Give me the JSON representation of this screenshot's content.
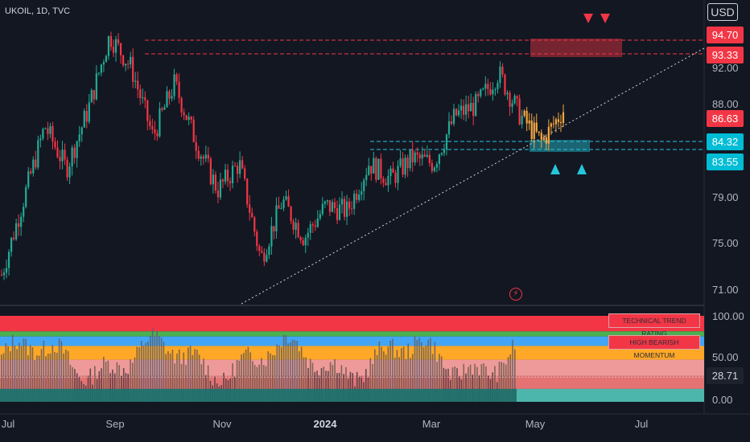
{
  "header": {
    "symbol": "UKOIL, 1D, TVC",
    "currency": "USD"
  },
  "price_axis": {
    "labels": [
      "92.00",
      "88.00",
      "79.00",
      "75.00",
      "71.00"
    ]
  },
  "price_badges": [
    {
      "value": "94.70",
      "color": "#f23645"
    },
    {
      "value": "93.33",
      "color": "#f23645"
    },
    {
      "value": "86.63",
      "color": "#f23645"
    },
    {
      "value": "84.32",
      "color": "#00bcd4"
    },
    {
      "value": "83.55",
      "color": "#00bcd4"
    }
  ],
  "osc_axis": {
    "labels": [
      "100.00",
      "50.00",
      "28.71",
      "0.00"
    ]
  },
  "osc_boxes": {
    "rating": "TECHNICAL TREND RATING",
    "momentum": "HIGH BEARISH MOMENTUM"
  },
  "time_axis": {
    "labels": [
      "Jul",
      "Sep",
      "Nov",
      "2024",
      "Mar",
      "May",
      "Jul"
    ]
  },
  "colors": {
    "up": "#22ab94",
    "down": "#f23645",
    "projection": "#f5a742",
    "support": "#26c6da",
    "resistance": "#f23645"
  },
  "icons": {
    "alert": "lightning-icon",
    "sell": "triangle-down-icon",
    "buy": "triangle-up-icon"
  },
  "chart_data": {
    "type": "candlestick",
    "y_ticks": [
      71,
      75,
      79,
      88,
      92
    ],
    "resistance_levels": [
      94.7,
      93.33
    ],
    "support_levels": [
      84.32,
      83.55
    ],
    "last_price": 86.63,
    "price_path": [
      [
        "Jul",
        72.5
      ],
      [
        "Jul",
        79.5
      ],
      [
        "Aug",
        86.5
      ],
      [
        "Aug",
        82.5
      ],
      [
        "Sep",
        88.0
      ],
      [
        "Sep",
        95.0
      ],
      [
        "Oct",
        92.0
      ],
      [
        "Oct",
        85.5
      ],
      [
        "Oct",
        90.5
      ],
      [
        "Nov",
        85.0
      ],
      [
        "Nov",
        80.5
      ],
      [
        "Nov",
        83.0
      ],
      [
        "Dec",
        74.0
      ],
      [
        "Dec",
        79.5
      ],
      [
        "Dec",
        76.0
      ],
      [
        "2024",
        79.0
      ],
      [
        "Jan",
        78.5
      ],
      [
        "Jan",
        83.0
      ],
      [
        "Feb",
        81.5
      ],
      [
        "Feb",
        83.5
      ],
      [
        "Mar",
        83.0
      ],
      [
        "Mar",
        87.5
      ],
      [
        "Apr",
        88.5
      ],
      [
        "Apr",
        91.5
      ],
      [
        "Apr",
        87.5
      ],
      [
        "May",
        85.0
      ],
      [
        "May",
        88.0
      ]
    ],
    "oscillator": {
      "range": [
        0,
        100
      ],
      "last": 28.71,
      "bands": [
        {
          "from": 82,
          "to": 100,
          "color": "#f23645"
        },
        {
          "from": 76,
          "to": 82,
          "color": "#4caf50"
        },
        {
          "from": 65,
          "to": 76,
          "color": "#42a5f5"
        },
        {
          "from": 49,
          "to": 65,
          "color": "#ffa726"
        },
        {
          "from": 30,
          "to": 49,
          "color": "#ef9a9a"
        },
        {
          "from": 15,
          "to": 30,
          "color": "#e57373"
        },
        {
          "from": 0,
          "to": 15,
          "color": "#4db6ac"
        }
      ]
    }
  }
}
